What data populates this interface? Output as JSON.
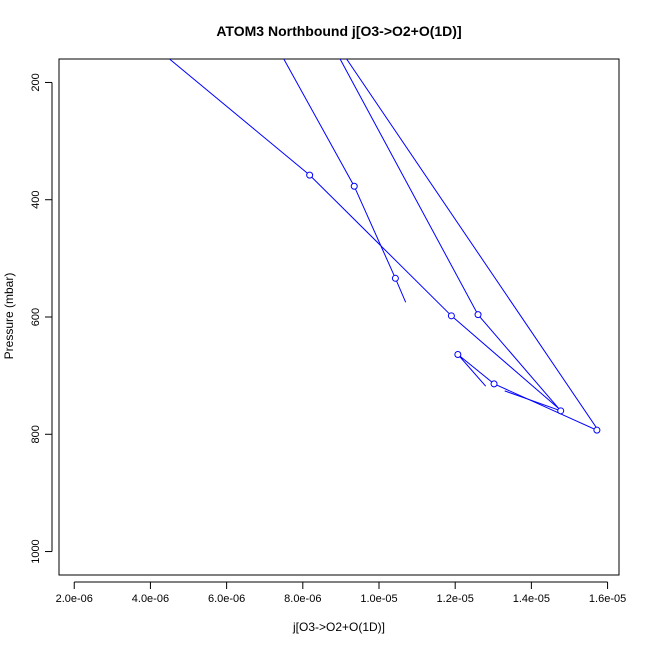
{
  "chart_data": {
    "type": "line",
    "title": "ATOM3 Northbound j[O3->O2+O(1D)]",
    "xlabel": "j[O3->O2+O(1D)]",
    "ylabel": "Pressure (mbar)",
    "xlim": [
      1.6e-06,
      1.63e-05
    ],
    "ylim": [
      1040,
      160
    ],
    "y_reversed": true,
    "x_ticks": [
      2e-06,
      4e-06,
      6e-06,
      8e-06,
      1e-05,
      1.2e-05,
      1.4e-05,
      1.6e-05
    ],
    "x_tick_labels": [
      "2.0e-06",
      "4.0e-06",
      "6.0e-06",
      "8.0e-06",
      "1.0e-05",
      "1.2e-05",
      "1.4e-05",
      "1.6e-05"
    ],
    "y_ticks": [
      200,
      400,
      600,
      800,
      1000
    ],
    "y_tick_labels": [
      "200",
      "400",
      "600",
      "800",
      "1000"
    ],
    "series_color": "#0000ff",
    "series": [
      {
        "points": [
          {
            "x": 4.5e-06,
            "y": 160,
            "marker": false
          },
          {
            "x": 8.18e-06,
            "y": 358,
            "marker": true
          },
          {
            "x": 1.19e-05,
            "y": 598,
            "marker": true
          },
          {
            "x": 1.47e-05,
            "y": 755,
            "marker": false
          }
        ]
      },
      {
        "points": [
          {
            "x": 7.5e-06,
            "y": 160,
            "marker": false
          },
          {
            "x": 9.35e-06,
            "y": 377,
            "marker": true
          },
          {
            "x": 1.043e-05,
            "y": 534,
            "marker": true
          },
          {
            "x": 1.07e-05,
            "y": 575,
            "marker": false
          }
        ]
      },
      {
        "points": [
          {
            "x": 8.98e-06,
            "y": 160,
            "marker": false
          },
          {
            "x": 1.26e-05,
            "y": 596,
            "marker": true
          },
          {
            "x": 1.477e-05,
            "y": 760,
            "marker": true
          },
          {
            "x": 1.33e-05,
            "y": 726,
            "marker": false
          }
        ]
      },
      {
        "points": [
          {
            "x": 9.15e-06,
            "y": 160,
            "marker": false
          },
          {
            "x": 1.57e-05,
            "y": 788,
            "marker": false
          },
          {
            "x": 1.572e-05,
            "y": 793,
            "marker": true
          },
          {
            "x": 1.302e-05,
            "y": 714,
            "marker": true
          },
          {
            "x": 1.207e-05,
            "y": 664,
            "marker": true
          },
          {
            "x": 1.28e-05,
            "y": 718,
            "marker": false
          }
        ]
      }
    ]
  }
}
